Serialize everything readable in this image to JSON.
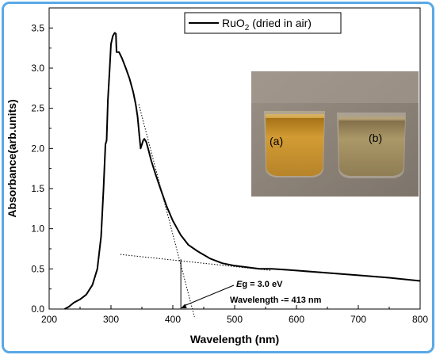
{
  "chart_data": {
    "type": "line",
    "xlabel": "Wavelength (nm)",
    "ylabel": "Absorbance(arb.units)",
    "xlim": [
      200,
      800
    ],
    "ylim": [
      0,
      3.75
    ],
    "x_ticks": [
      200,
      300,
      400,
      500,
      600,
      700,
      800
    ],
    "y_ticks": [
      0.0,
      0.5,
      1.0,
      1.5,
      2.0,
      2.5,
      3.0,
      3.5
    ],
    "x_tick_labels": [
      "200",
      "300",
      "400",
      "500",
      "600",
      "700",
      "800"
    ],
    "y_tick_labels": [
      "0.0",
      "0.5",
      "1.0",
      "1.5",
      "2.0",
      "2.5",
      "3.0",
      "3.5"
    ],
    "legend": {
      "position": "top-right",
      "label_prefix": "RuO",
      "label_sub": "2",
      "label_suffix": " (dried in air)"
    },
    "series": [
      {
        "name": "RuO2 (dried in air)",
        "x": [
          225,
          232,
          240,
          250,
          260,
          270,
          278,
          284,
          288,
          291,
          293,
          295,
          298,
          300,
          303,
          306,
          308,
          309,
          311,
          313,
          318,
          324,
          330,
          336,
          340,
          343,
          346,
          348,
          350,
          352,
          354,
          357,
          360,
          365,
          372,
          380,
          390,
          400,
          413,
          425,
          440,
          460,
          480,
          500,
          520,
          540,
          560,
          580,
          600,
          650,
          700,
          750,
          800
        ],
        "y": [
          0.0,
          0.03,
          0.08,
          0.12,
          0.18,
          0.3,
          0.5,
          0.9,
          1.5,
          2.05,
          2.1,
          2.6,
          3.0,
          3.3,
          3.4,
          3.44,
          3.43,
          3.2,
          3.2,
          3.2,
          3.12,
          3.0,
          2.87,
          2.7,
          2.55,
          2.4,
          2.15,
          2.0,
          2.05,
          2.1,
          2.12,
          2.08,
          2.0,
          1.85,
          1.68,
          1.5,
          1.28,
          1.1,
          0.92,
          0.8,
          0.72,
          0.63,
          0.57,
          0.54,
          0.52,
          0.5,
          0.5,
          0.49,
          0.48,
          0.45,
          0.42,
          0.39,
          0.35
        ]
      }
    ],
    "tangent_lines": [
      {
        "x": [
          345,
          435
        ],
        "y": [
          2.55,
          -0.1
        ]
      },
      {
        "x": [
          315,
          560
        ],
        "y": [
          0.68,
          0.48
        ]
      }
    ],
    "marker_line": {
      "x": 413,
      "y_from": 0,
      "y_to": 0.62
    },
    "annotation": {
      "eg_italic": "E",
      "eg_rest": "g = 3.0 eV",
      "wavelength": "Wavelength -= 413 nm",
      "arrow_target": {
        "x": 413,
        "y": 0.01
      }
    },
    "inset": {
      "label_a": "(a)",
      "label_b": "(b)",
      "colors": {
        "background": "#8d8379",
        "liquid_a": "#c08b22",
        "liquid_b": "#9e8a5c",
        "glass": "#cfc8bd"
      }
    },
    "colors": {
      "line": "#000000",
      "frame": "#5aa8e6"
    }
  }
}
